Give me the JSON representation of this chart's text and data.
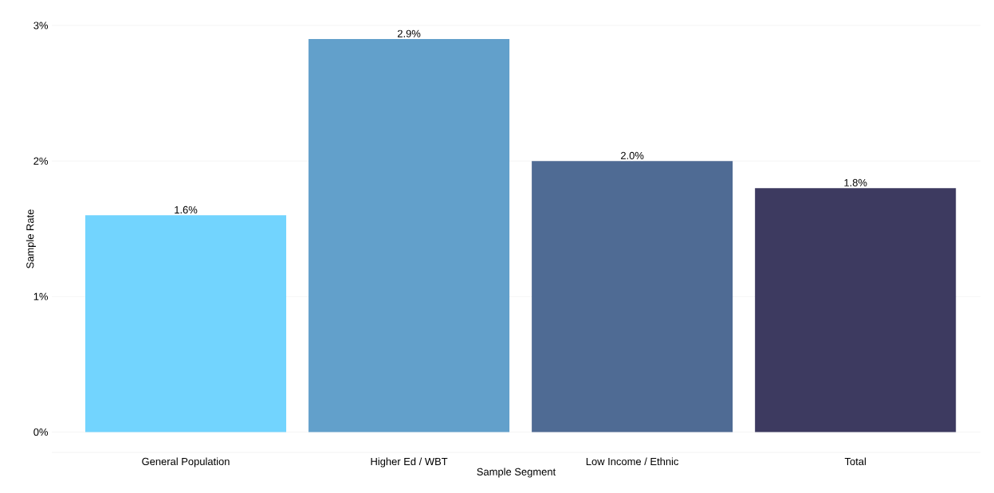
{
  "chart_data": {
    "type": "bar",
    "xlabel": "Sample Segment",
    "ylabel": "Sample Rate",
    "categories": [
      "General Population",
      "Higher Ed / WBT",
      "Low Income / Ethnic",
      "Total"
    ],
    "values": [
      1.6,
      2.9,
      2.0,
      1.8
    ],
    "colors": [
      "#72d4fe",
      "#62a0cb",
      "#4f6b94",
      "#3d3a60"
    ],
    "value_labels": [
      "1.6%",
      "2.9%",
      "2.0%",
      "1.8%"
    ],
    "ylim": [
      -0.15,
      3
    ],
    "yticks": [
      {
        "value": 0,
        "label": "0%"
      },
      {
        "value": 1,
        "label": "1%"
      },
      {
        "value": 2,
        "label": "2%"
      },
      {
        "value": 3,
        "label": "3%"
      }
    ],
    "grid": "y"
  }
}
